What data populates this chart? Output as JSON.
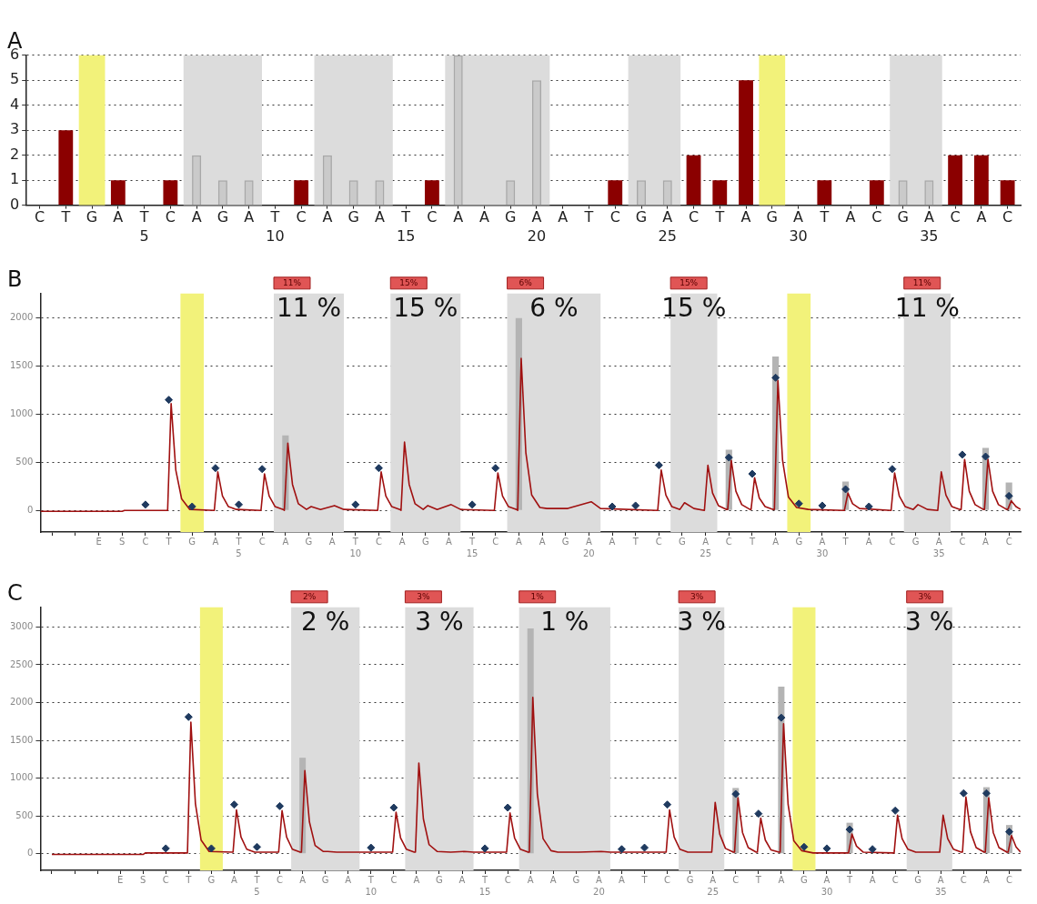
{
  "chart_data": [
    {
      "type": "bar",
      "title": "A",
      "categories": [
        "C",
        "T",
        "G",
        "A",
        "T",
        "C",
        "A",
        "G",
        "A",
        "T",
        "C",
        "A",
        "G",
        "A",
        "T",
        "C",
        "A",
        "A",
        "G",
        "A",
        "A",
        "T",
        "C",
        "G",
        "A",
        "C",
        "T",
        "A",
        "G",
        "A",
        "T",
        "A",
        "C",
        "G",
        "A",
        "C",
        "A",
        "C"
      ],
      "x2lim": [
        0.5,
        38.5
      ],
      "x2ticks": [
        5,
        10,
        15,
        20,
        25,
        30,
        35
      ],
      "ylim": [
        0,
        6
      ],
      "yticks": [
        0,
        1,
        2,
        3,
        4,
        5,
        6
      ],
      "grid": "y",
      "bands": [
        {
          "axis": "x2",
          "from": 2.5,
          "to": 3.5,
          "color": "#f2f27a"
        },
        {
          "axis": "x2",
          "from": 6.5,
          "to": 9.5,
          "color": "#dcdcdc"
        },
        {
          "axis": "x2",
          "from": 11.5,
          "to": 14.5,
          "color": "#dcdcdc"
        },
        {
          "axis": "x2",
          "from": 16.5,
          "to": 20.5,
          "color": "#dcdcdc"
        },
        {
          "axis": "x2",
          "from": 23.5,
          "to": 25.5,
          "color": "#dcdcdc"
        },
        {
          "axis": "x2",
          "from": 28.5,
          "to": 29.5,
          "color": "#f2f27a"
        },
        {
          "axis": "x2",
          "from": 33.5,
          "to": 35.5,
          "color": "#dcdcdc"
        }
      ],
      "series": [
        {
          "color": "#8b0000",
          "values": [
            null,
            3,
            null,
            1,
            null,
            1,
            null,
            null,
            null,
            null,
            1,
            null,
            null,
            null,
            null,
            1,
            null,
            null,
            null,
            null,
            null,
            null,
            1,
            null,
            null,
            2,
            1,
            5,
            null,
            null,
            1,
            null,
            1,
            null,
            null,
            2,
            2,
            1
          ]
        },
        {
          "color": "#a8a8a8",
          "values": [
            null,
            null,
            null,
            null,
            null,
            null,
            2,
            1,
            1,
            null,
            null,
            2,
            1,
            1,
            null,
            null,
            6,
            null,
            1,
            5,
            null,
            null,
            null,
            1,
            1,
            null,
            null,
            null,
            null,
            null,
            null,
            null,
            null,
            1,
            1,
            null,
            null,
            null
          ]
        }
      ]
    },
    {
      "type": "line",
      "title": "B",
      "categories": [
        null,
        null,
        "E",
        "S",
        "C",
        "T",
        "G",
        "A",
        "T",
        "C",
        "A",
        "G",
        "A",
        "T",
        "C",
        "A",
        "G",
        "A",
        "T",
        "C",
        "A",
        "A",
        "G",
        "A",
        "A",
        "T",
        "C",
        "G",
        "A",
        "C",
        "T",
        "A",
        "G",
        "A",
        "T",
        "A",
        "C",
        "G",
        "A",
        "C",
        "A",
        "C"
      ],
      "x2lim": [
        -3.5,
        38.5
      ],
      "x2ticks": [
        5,
        10,
        15,
        20,
        25,
        30,
        35
      ],
      "ylim": [
        -225,
        2255
      ],
      "yticks": [
        0,
        500,
        1000,
        1500,
        2000
      ],
      "grid": "y",
      "bands": [
        {
          "axis": "x2",
          "from": 2.5,
          "to": 3.5,
          "color": "#f2f27a"
        },
        {
          "axis": "x2",
          "from": 6.5,
          "to": 9.5,
          "color": "#dcdcdc",
          "label": "11%"
        },
        {
          "axis": "x2",
          "from": 11.5,
          "to": 14.5,
          "color": "#dcdcdc",
          "label": "15%"
        },
        {
          "axis": "x2",
          "from": 16.5,
          "to": 20.5,
          "color": "#dcdcdc",
          "label": "6%"
        },
        {
          "axis": "x2",
          "from": 23.5,
          "to": 25.5,
          "color": "#dcdcdc",
          "label": "15%"
        },
        {
          "axis": "x2",
          "from": 28.5,
          "to": 29.5,
          "color": "#f2f27a"
        },
        {
          "axis": "x2",
          "from": 33.5,
          "to": 35.5,
          "color": "#dcdcdc",
          "label": "11%"
        }
      ],
      "annotations": [
        "11 %",
        "15 %",
        "6 %",
        "15 %",
        "11 %"
      ],
      "series": [
        {
          "type": "bar",
          "color": "#b4b4b4",
          "values": [
            null,
            null,
            null,
            null,
            null,
            null,
            null,
            null,
            null,
            null,
            780,
            null,
            null,
            null,
            null,
            null,
            null,
            null,
            null,
            null,
            2000,
            null,
            null,
            null,
            null,
            null,
            null,
            null,
            null,
            630,
            null,
            1600,
            null,
            null,
            300,
            null,
            null,
            null,
            null,
            null,
            650,
            290
          ]
        },
        {
          "type": "line",
          "color": "#a01010",
          "marker": "none",
          "axis": "x2",
          "x": [
            -3.5,
            0,
            0.1,
            1.95,
            2.1,
            2.3,
            2.55,
            2.9,
            3.95,
            4.1,
            4.3,
            4.55,
            4.9,
            5.95,
            6.1,
            6.3,
            6.55,
            6.9,
            6.95,
            7.1,
            7.3,
            7.55,
            7.9,
            8.1,
            8.5,
            9.1,
            9.5,
            10.95,
            11.1,
            11.3,
            11.55,
            11.9,
            11.95,
            12.1,
            12.3,
            12.55,
            12.9,
            13.1,
            13.5,
            14.1,
            14.5,
            15.95,
            16.1,
            16.3,
            16.55,
            16.9,
            16.95,
            17.1,
            17.3,
            17.55,
            17.9,
            18.2,
            19.1,
            20.1,
            20.5,
            22.95,
            23.1,
            23.3,
            23.55,
            23.9,
            24.1,
            24.5,
            24.95,
            25.1,
            25.3,
            25.55,
            25.9,
            25.95,
            26.1,
            26.3,
            26.55,
            26.9,
            26.95,
            27.1,
            27.3,
            27.55,
            27.9,
            27.95,
            28.1,
            28.3,
            28.55,
            28.9,
            29.4,
            30.95,
            31.1,
            31.3,
            31.6,
            32.95,
            33.1,
            33.3,
            33.55,
            33.9,
            34.1,
            34.5,
            34.95,
            35.1,
            35.3,
            35.55,
            35.9,
            35.95,
            36.1,
            36.3,
            36.55,
            36.9,
            36.95,
            37.1,
            37.3,
            37.55,
            37.9,
            37.95,
            38.1,
            38.3,
            38.5
          ],
          "values": [
            -10,
            -10,
            0,
            0,
            1110,
            420,
            120,
            10,
            0,
            400,
            150,
            40,
            10,
            0,
            380,
            150,
            40,
            10,
            0,
            700,
            270,
            70,
            10,
            40,
            10,
            50,
            10,
            0,
            400,
            150,
            40,
            10,
            0,
            710,
            270,
            70,
            10,
            50,
            10,
            60,
            10,
            0,
            390,
            150,
            40,
            10,
            0,
            1580,
            600,
            160,
            30,
            20,
            20,
            90,
            20,
            0,
            420,
            160,
            40,
            10,
            80,
            20,
            0,
            470,
            180,
            50,
            10,
            10,
            520,
            200,
            60,
            10,
            10,
            340,
            130,
            40,
            10,
            10,
            1350,
            520,
            140,
            30,
            10,
            0,
            180,
            70,
            20,
            0,
            390,
            150,
            40,
            10,
            60,
            10,
            0,
            400,
            160,
            40,
            10,
            10,
            530,
            200,
            60,
            10,
            10,
            530,
            200,
            60,
            10,
            10,
            100,
            40,
            10
          ]
        },
        {
          "type": "scatter",
          "color": "#1f3a5f",
          "marker": "diamond",
          "values": [
            null,
            null,
            null,
            null,
            60,
            1150,
            40,
            440,
            60,
            430,
            null,
            null,
            null,
            60,
            440,
            null,
            null,
            null,
            60,
            440,
            null,
            null,
            null,
            null,
            40,
            50,
            470,
            null,
            null,
            550,
            380,
            1380,
            70,
            50,
            220,
            40,
            430,
            null,
            null,
            580,
            560,
            150
          ]
        }
      ]
    },
    {
      "type": "line",
      "title": "C",
      "categories": [
        null,
        null,
        null,
        "E",
        "S",
        "C",
        "T",
        "G",
        "A",
        "T",
        "C",
        "A",
        "G",
        "A",
        "T",
        "C",
        "A",
        "G",
        "A",
        "T",
        "C",
        "A",
        "A",
        "G",
        "A",
        "A",
        "T",
        "C",
        "G",
        "A",
        "C",
        "T",
        "A",
        "G",
        "A",
        "T",
        "A",
        "C",
        "G",
        "A",
        "C",
        "A",
        "C"
      ],
      "x2lim": [
        -4.5,
        38.5
      ],
      "x2ticks": [
        5,
        10,
        15,
        20,
        25,
        30,
        35
      ],
      "ylim": [
        -220,
        3260
      ],
      "yticks": [
        0,
        500,
        1000,
        1500,
        2000,
        2500,
        3000
      ],
      "grid": "y",
      "bands": [
        {
          "axis": "x2",
          "from": 2.5,
          "to": 3.5,
          "color": "#f2f27a"
        },
        {
          "axis": "x2",
          "from": 6.5,
          "to": 9.5,
          "color": "#dcdcdc",
          "label": "2%"
        },
        {
          "axis": "x2",
          "from": 11.5,
          "to": 14.5,
          "color": "#dcdcdc",
          "label": "3%"
        },
        {
          "axis": "x2",
          "from": 16.5,
          "to": 20.5,
          "color": "#dcdcdc",
          "label": "1%"
        },
        {
          "axis": "x2",
          "from": 23.5,
          "to": 25.5,
          "color": "#dcdcdc",
          "label": "3%"
        },
        {
          "axis": "x2",
          "from": 28.5,
          "to": 29.5,
          "color": "#f2f27a"
        },
        {
          "axis": "x2",
          "from": 33.5,
          "to": 35.5,
          "color": "#dcdcdc",
          "label": "3%"
        }
      ],
      "annotations": [
        "2 %",
        "3 %",
        "1 %",
        "3 %",
        "3 %"
      ],
      "series": [
        {
          "type": "bar",
          "color": "#b4b4b4",
          "values": [
            null,
            null,
            null,
            null,
            null,
            null,
            null,
            null,
            null,
            null,
            null,
            1270,
            null,
            null,
            null,
            null,
            null,
            null,
            null,
            null,
            null,
            2980,
            null,
            null,
            null,
            null,
            null,
            null,
            null,
            null,
            870,
            null,
            2210,
            null,
            null,
            410,
            null,
            null,
            null,
            null,
            null,
            880,
            380
          ]
        },
        {
          "type": "line",
          "color": "#a01010",
          "marker": "none",
          "axis": "x2",
          "x": [
            -4,
            0,
            0.1,
            1.95,
            2.1,
            2.3,
            2.55,
            2.9,
            3.95,
            4.1,
            4.3,
            4.55,
            4.9,
            5.95,
            6.1,
            6.3,
            6.55,
            6.9,
            6.95,
            7.1,
            7.3,
            7.55,
            7.9,
            8.1,
            8.5,
            9.1,
            9.5,
            10.95,
            11.1,
            11.3,
            11.55,
            11.9,
            11.95,
            12.1,
            12.3,
            12.55,
            12.9,
            13.5,
            14.1,
            14.5,
            15.95,
            16.1,
            16.3,
            16.55,
            16.9,
            16.95,
            17.1,
            17.3,
            17.55,
            17.9,
            18.2,
            19.1,
            20.1,
            20.5,
            22.95,
            23.1,
            23.3,
            23.55,
            23.9,
            24.95,
            25.1,
            25.3,
            25.55,
            25.9,
            25.95,
            26.1,
            26.3,
            26.55,
            26.9,
            26.95,
            27.1,
            27.3,
            27.55,
            27.9,
            27.95,
            28.1,
            28.3,
            28.55,
            28.9,
            29.4,
            30.95,
            31.1,
            31.3,
            31.6,
            32.95,
            33.1,
            33.3,
            33.55,
            33.9,
            34.95,
            35.1,
            35.3,
            35.55,
            35.9,
            35.95,
            36.1,
            36.3,
            36.55,
            36.9,
            36.95,
            37.1,
            37.3,
            37.55,
            37.9,
            37.95,
            38.1,
            38.3,
            38.5
          ],
          "values": [
            -10,
            -10,
            10,
            10,
            1740,
            660,
            180,
            30,
            20,
            580,
            220,
            60,
            20,
            20,
            570,
            220,
            60,
            20,
            20,
            1100,
            420,
            110,
            30,
            30,
            20,
            20,
            20,
            20,
            550,
            210,
            60,
            20,
            20,
            1200,
            460,
            120,
            30,
            20,
            30,
            20,
            20,
            540,
            210,
            60,
            20,
            20,
            2070,
            790,
            200,
            40,
            20,
            20,
            30,
            20,
            20,
            580,
            220,
            60,
            20,
            20,
            680,
            260,
            70,
            20,
            20,
            740,
            280,
            80,
            20,
            20,
            470,
            180,
            50,
            20,
            20,
            1720,
            650,
            170,
            40,
            10,
            10,
            260,
            100,
            20,
            10,
            510,
            200,
            60,
            20,
            20,
            510,
            200,
            60,
            20,
            20,
            750,
            290,
            80,
            20,
            20,
            740,
            280,
            80,
            20,
            20,
            240,
            90,
            20
          ]
        },
        {
          "type": "scatter",
          "color": "#1f3a5f",
          "marker": "diamond",
          "values": [
            null,
            null,
            null,
            null,
            null,
            70,
            1810,
            70,
            650,
            90,
            630,
            null,
            null,
            null,
            80,
            610,
            null,
            null,
            null,
            70,
            610,
            null,
            null,
            null,
            null,
            60,
            80,
            650,
            null,
            null,
            790,
            530,
            1800,
            90,
            70,
            320,
            60,
            570,
            null,
            null,
            800,
            800,
            290
          ]
        }
      ]
    }
  ]
}
